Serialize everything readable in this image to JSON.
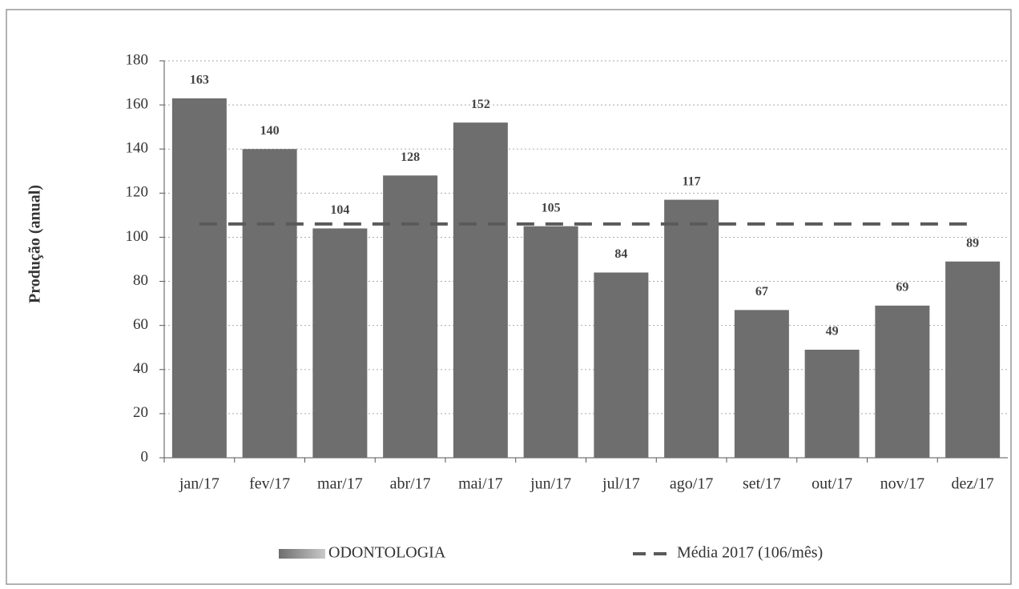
{
  "chart_data": {
    "type": "bar",
    "y_label": "Produção (anual)",
    "categories": [
      "jan/17",
      "fev/17",
      "mar/17",
      "abr/17",
      "mai/17",
      "jun/17",
      "jul/17",
      "ago/17",
      "set/17",
      "out/17",
      "nov/17",
      "dez/17"
    ],
    "series": [
      {
        "name": "ODONTOLOGIA",
        "type": "bar",
        "color": "#6e6e6e",
        "values": [
          163,
          140,
          104,
          128,
          152,
          105,
          84,
          117,
          67,
          49,
          69,
          89
        ]
      },
      {
        "name": "Média 2017 (106/mês)",
        "type": "line",
        "dashed": true,
        "color": "#5a5a5a",
        "values": [
          106,
          106,
          106,
          106,
          106,
          106,
          106,
          106,
          106,
          106,
          106,
          106
        ]
      }
    ],
    "ylim": [
      0,
      180
    ],
    "yticks": [
      0,
      20,
      40,
      60,
      80,
      100,
      120,
      140,
      160,
      180
    ],
    "grid": true,
    "legend": "bottom"
  }
}
